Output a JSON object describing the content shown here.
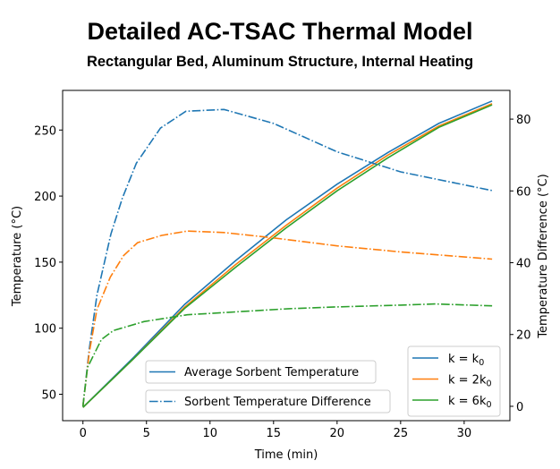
{
  "chart_data": {
    "type": "line",
    "title": "Detailed AC-TSAC Thermal Model",
    "subtitle": "Rectangular Bed, Aluminum Structure, Internal Heating",
    "xlabel": "Time (min)",
    "ylabel": "Temperature (°C)",
    "y2label": "Temperature Difference (°C)",
    "xlim": [
      -1.6,
      33.6
    ],
    "ylim": [
      30,
      280
    ],
    "y2lim": [
      -4,
      88
    ],
    "xticks": [
      0,
      5,
      10,
      15,
      20,
      25,
      30
    ],
    "yticks": [
      50,
      100,
      150,
      200,
      250
    ],
    "y2ticks": [
      0,
      20,
      40,
      60,
      80
    ],
    "grid": false,
    "colors": {
      "k0": "#1f77b4",
      "2k0": "#ff7f0e",
      "6k0": "#2ca02c"
    },
    "legend_style": [
      {
        "label": "Average Sorbent Temperature",
        "style": "solid"
      },
      {
        "label": "Sorbent Temperature Difference",
        "style": "dashdot"
      }
    ],
    "legend_k": [
      {
        "label": "k = k",
        "sub": "0",
        "color": "#1f77b4"
      },
      {
        "label": "k = 2k",
        "sub": "0",
        "color": "#ff7f0e"
      },
      {
        "label": "k = 6k",
        "sub": "0",
        "color": "#2ca02c"
      }
    ],
    "legend_placement": "lower-right",
    "series": [
      {
        "name": "k = k0",
        "kind": "Average Sorbent Temperature",
        "axis": "left",
        "color": "#1f77b4",
        "style": "solid",
        "x": [
          0,
          4,
          8,
          12,
          16,
          20,
          24,
          28,
          32.2
        ],
        "y": [
          40,
          78,
          118,
          151,
          182,
          209,
          233,
          255,
          272
        ]
      },
      {
        "name": "k = 2k0",
        "kind": "Average Sorbent Temperature",
        "axis": "left",
        "color": "#ff7f0e",
        "style": "solid",
        "x": [
          0,
          4,
          8,
          12,
          16,
          20,
          24,
          28,
          32.2
        ],
        "y": [
          40,
          77,
          116,
          148,
          178,
          206,
          231,
          253,
          270
        ]
      },
      {
        "name": "k = 6k0",
        "kind": "Average Sorbent Temperature",
        "axis": "left",
        "color": "#2ca02c",
        "style": "solid",
        "x": [
          0,
          4,
          8,
          12,
          16,
          20,
          24,
          28,
          32.2
        ],
        "y": [
          40,
          77,
          115,
          146,
          176,
          204,
          229,
          252,
          269
        ]
      },
      {
        "name": "k = k0",
        "kind": "Sorbent Temperature Difference",
        "axis": "right",
        "color": "#1f77b4",
        "style": "dashdot",
        "x": [
          0,
          0.5,
          1.1,
          2.2,
          3.1,
          4.2,
          6.1,
          8.1,
          11.1,
          15,
          20,
          25,
          32.2
        ],
        "y": [
          0,
          16,
          31,
          48,
          58,
          67.7,
          77.5,
          82.2,
          82.7,
          78.8,
          70.9,
          65.3,
          60.1
        ]
      },
      {
        "name": "k = 2k0",
        "kind": "Sorbent Temperature Difference",
        "axis": "right",
        "color": "#ff7f0e",
        "style": "dashdot",
        "x": [
          0,
          0.5,
          1.1,
          2.15,
          3.2,
          4.3,
          6.2,
          8.2,
          11.1,
          15,
          20,
          25,
          32.2
        ],
        "y": [
          0,
          15,
          27,
          36,
          42,
          45.6,
          47.6,
          48.8,
          48.4,
          46.9,
          44.7,
          43,
          41
        ]
      },
      {
        "name": "k = 6k0",
        "kind": "Sorbent Temperature Difference",
        "axis": "right",
        "color": "#2ca02c",
        "style": "dashdot",
        "x": [
          0,
          0.36,
          1.45,
          2.4,
          4.8,
          8.2,
          16.2,
          20,
          25,
          27.7,
          32.2
        ],
        "y": [
          0,
          10.8,
          18.6,
          21.1,
          23.6,
          25.5,
          27.2,
          27.7,
          28.2,
          28.5,
          28
        ]
      }
    ]
  }
}
